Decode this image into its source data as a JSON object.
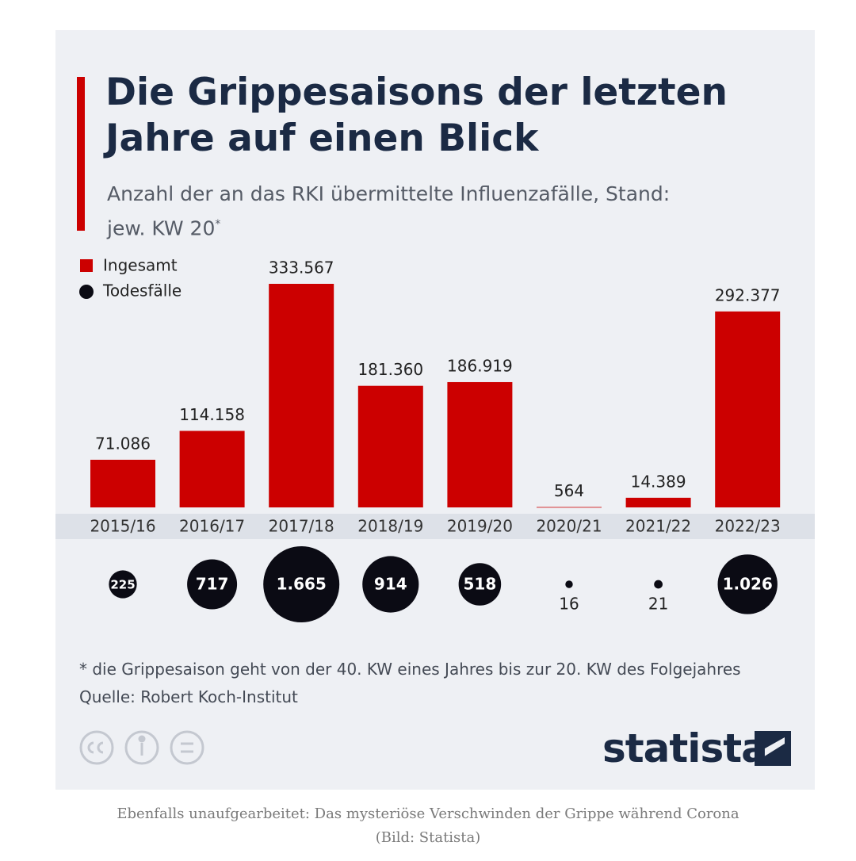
{
  "chart_data": {
    "type": "bar",
    "title": "Die Grippesaisons der letzten Jahre auf einen Blick",
    "subtitle": "Anzahl der an das RKI übermittelte Influenzafälle, Stand: jew. KW 20",
    "subtitle_marker": "*",
    "categories": [
      "2015/16",
      "2016/17",
      "2017/18",
      "2018/19",
      "2019/20",
      "2020/21",
      "2021/22",
      "2022/23"
    ],
    "series": [
      {
        "name": "Ingesamt",
        "color": "#cc0000",
        "values": [
          71086,
          114158,
          333567,
          181360,
          186919,
          564,
          14389,
          292377
        ],
        "value_labels": [
          "71.086",
          "114.158",
          "333.567",
          "181.360",
          "186.919",
          "564",
          "14.389",
          "292.377"
        ]
      },
      {
        "name": "Todesfälle",
        "color": "#0b0b14",
        "values": [
          225,
          717,
          1665,
          914,
          518,
          16,
          21,
          1026
        ],
        "value_labels": [
          "225",
          "717",
          "1.665",
          "914",
          "518",
          "16",
          "21",
          "1.026"
        ]
      }
    ],
    "note": "* die Grippesaison geht von der 40. KW eines Jahres bis zur 20. KW des Folgejahres",
    "source": "Quelle: Robert Koch-Institut",
    "brand": "statista",
    "caption": "Ebenfalls unaufgearbeitet: Das mysteriöse Verschwinden der Grippe während Corona (Bild: Statista)"
  }
}
